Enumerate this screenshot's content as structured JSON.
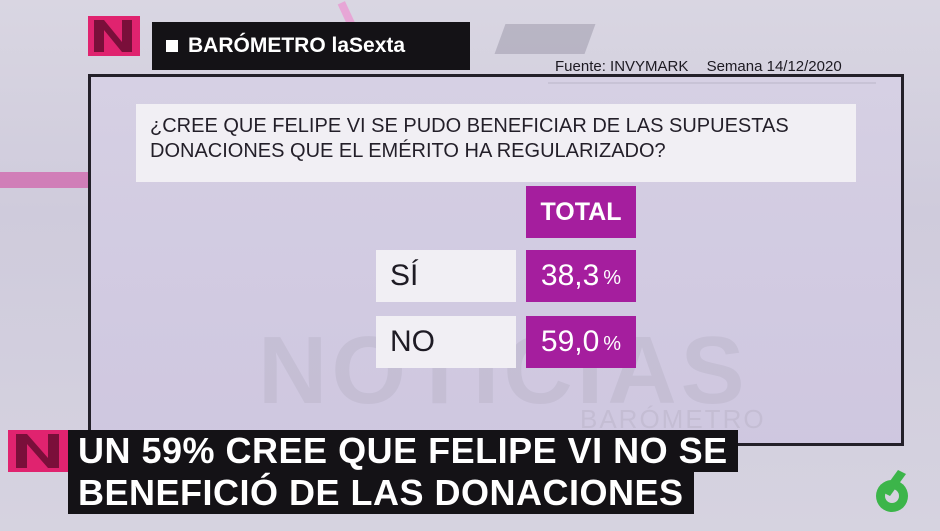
{
  "header": {
    "title": "BARÓMETRO laSexta"
  },
  "source": {
    "label": "Fuente: INVYMARK",
    "date": "Semana 14/12/2020"
  },
  "question": {
    "line1": "¿CREE QUE FELIPE VI SE PUDO BENEFICIAR DE LAS SUPUESTAS",
    "line2": "DONACIONES QUE EL EMÉRITO HA REGULARIZADO?"
  },
  "results": {
    "column_header": "TOTAL",
    "rows": [
      {
        "label": "SÍ",
        "value": "38,3",
        "unit": "%"
      },
      {
        "label": "NO",
        "value": "59,0",
        "unit": "%"
      }
    ]
  },
  "watermark": {
    "main": "NOTICIAS",
    "sub": "BARÓMETRO"
  },
  "ticker": {
    "line1": "UN 59% CREE QUE FELIPE VI NO SE",
    "line2": "BENEFICIÓ DE LAS DONACIONES"
  },
  "colors": {
    "accent_magenta": "#a51e9e",
    "bar_dark": "#141216",
    "logo_pink": "#e0236f"
  },
  "icons": {
    "brand_logo": "noticias-n-logo-icon",
    "channel_logo": "lasexta-6-logo-icon"
  }
}
